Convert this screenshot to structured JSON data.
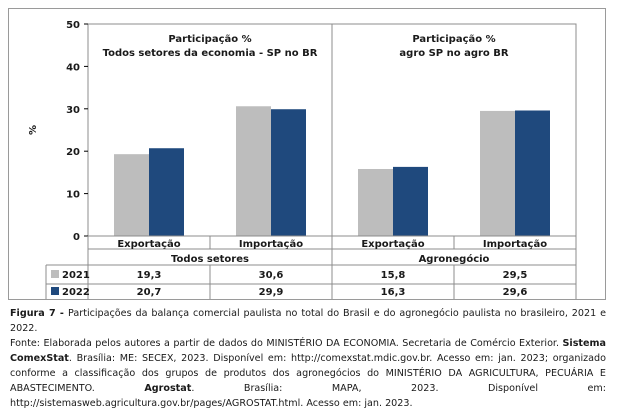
{
  "chart_data": {
    "type": "bar",
    "ylabel": "%",
    "ylim": [
      0,
      50
    ],
    "yticks": [
      0,
      10,
      20,
      30,
      40,
      50
    ],
    "grid": false,
    "groups": [
      {
        "name": "Todos setores",
        "title_line1": "Participação %",
        "title_line2": "Todos setores da economia - SP no BR"
      },
      {
        "name": "Agronegócio",
        "title_line1": "Participação %",
        "title_line2": "agro SP no agro  BR"
      }
    ],
    "categories": [
      "Exportação",
      "Importação",
      "Exportação",
      "Importação"
    ],
    "category_group": [
      0,
      0,
      1,
      1
    ],
    "series": [
      {
        "name": "2021",
        "color": "#bdbdbd",
        "values": [
          19.3,
          30.6,
          15.8,
          29.5
        ],
        "labels": [
          "19,3",
          "30,6",
          "15,8",
          "29,5"
        ]
      },
      {
        "name": "2022",
        "color": "#1f497d",
        "values": [
          20.7,
          29.9,
          16.3,
          29.6
        ],
        "labels": [
          "20,7",
          "29,9",
          "16,3",
          "29,6"
        ]
      }
    ]
  },
  "caption": {
    "figure_label": "Figura 7 - ",
    "figure_text": "Participações da balança comercial paulista no total do Brasil e do agronegócio paulista no brasileiro, 2021 e 2022.",
    "source_1": "Fonte: Elaborada pelos autores a partir de dados do MINISTÉRIO DA ECONOMIA. Secretaria de Comércio Exterior. ",
    "source_bold_1": "Sistema ComexStat",
    "source_2": ". Brasília: ME: SECEX, 2023. Disponível em: http://comexstat.mdic.gov.br. Acesso em: jan. 2023; organizado conforme a classificação dos grupos de produtos dos agronegócios do MINISTÉRIO DA AGRICULTURA, PECUÁRIA E ABASTECIMENTO. ",
    "source_bold_2": "Agrostat",
    "source_3": ". Brasília: MAPA, 2023. Disponível em: http://sistemasweb.agricultura.gov.br/pages/AGROSTAT.html. Acesso em: jan. 2023."
  }
}
